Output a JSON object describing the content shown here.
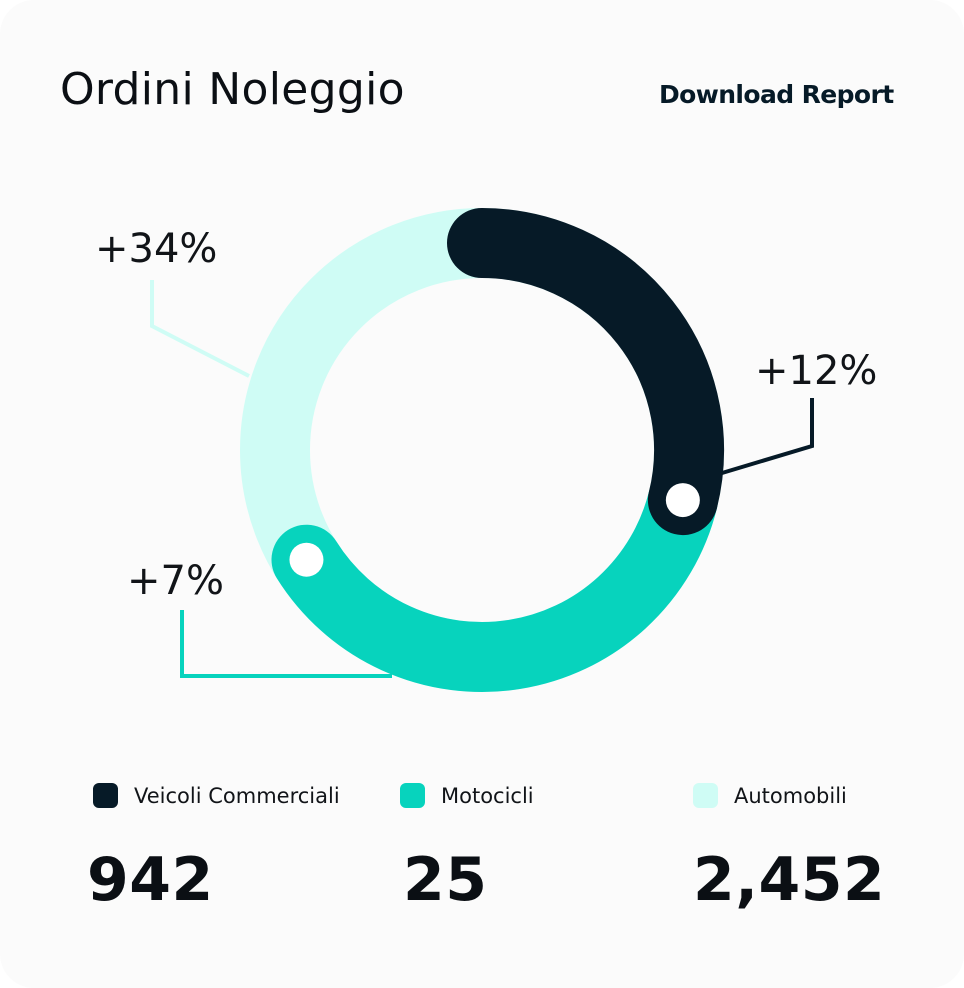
{
  "header": {
    "title": "Ordini Noleggio",
    "download_label": "Download Report"
  },
  "chart_data": {
    "type": "donut",
    "series": [
      {
        "name": "Veicoli Commerciali",
        "color": "#061a27",
        "value": 942,
        "change": "+12%"
      },
      {
        "name": "Motocicli",
        "color": "#07d3bd",
        "value": 25,
        "change": "+7%"
      },
      {
        "name": "Automobili",
        "color": "#cffcf5",
        "value": 2452,
        "change": "+34%"
      }
    ],
    "legend_placement": "bottom"
  },
  "legend": [
    {
      "label": "Veicoli Commerciali",
      "value": "942",
      "color": "#061a27"
    },
    {
      "label": "Motocicli",
      "value": "25",
      "color": "#07d3bd"
    },
    {
      "label": "Automobili",
      "value": "2,452",
      "color": "#cffcf5"
    }
  ]
}
